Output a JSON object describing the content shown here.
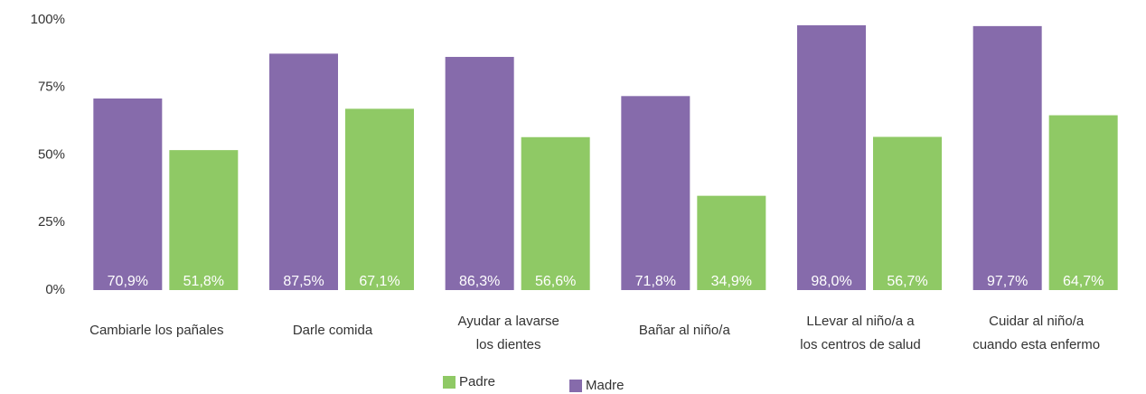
{
  "chart_data": {
    "type": "bar",
    "categories": [
      "Cambiarle los pañales",
      "Darle comida",
      "Ayudar a lavarse\nlos dientes",
      "Bañar al niño/a",
      "LLevar al niño/a a\nlos centros de salud",
      "Cuidar al niño/a\ncuando esta enfermo"
    ],
    "series": [
      {
        "name": "Madre",
        "color": "#866bab",
        "values": [
          70.9,
          87.5,
          86.3,
          71.8,
          98.0,
          97.7
        ],
        "value_labels": [
          "70,9%",
          "87,5%",
          "86,3%",
          "71,8%",
          "98,0%",
          "97,7%"
        ]
      },
      {
        "name": "Padre",
        "color": "#8fc965",
        "values": [
          51.8,
          67.1,
          56.6,
          34.9,
          56.7,
          64.7
        ],
        "value_labels": [
          "51,8%",
          "67,1%",
          "56,6%",
          "34,9%",
          "56,7%",
          "64,7%"
        ]
      }
    ],
    "ylim": [
      0,
      100
    ],
    "yticks": [
      {
        "value": 0,
        "label": "0%"
      },
      {
        "value": 25,
        "label": "25%"
      },
      {
        "value": 50,
        "label": "50%"
      },
      {
        "value": 75,
        "label": "75%"
      },
      {
        "value": 100,
        "label": "100%"
      }
    ],
    "grid": false
  }
}
